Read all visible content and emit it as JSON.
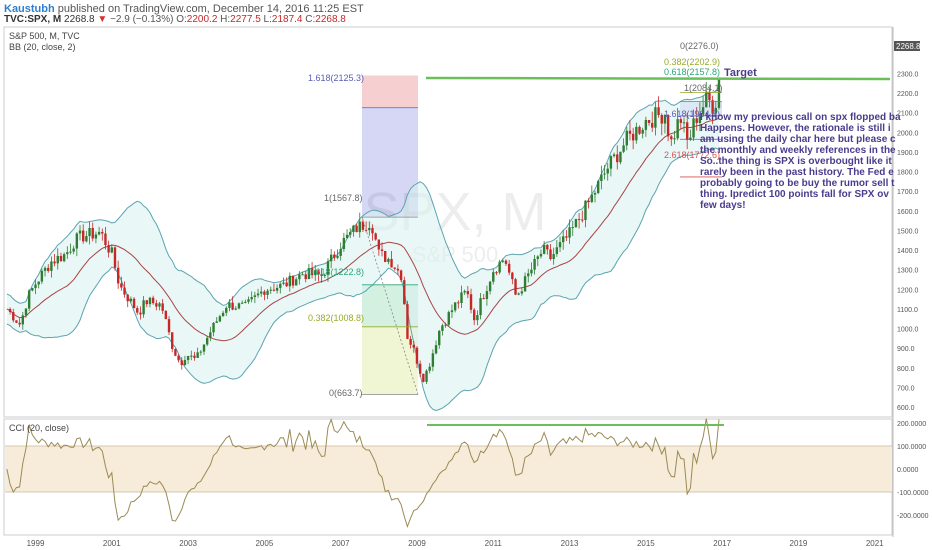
{
  "header": {
    "author": "Kaustubh",
    "published": "published on TradingView.com, December 14, 2016 11:25 EST",
    "symbol": "TVC:SPX, M",
    "last": "2268.8",
    "change_arrow": "▼",
    "change": "−2.9 (−0.13%)",
    "o_label": "O:",
    "o": "2200.2",
    "h_label": "H:",
    "h": "2277.5",
    "l_label": "L:",
    "l": "2187.4",
    "c_label": "C:",
    "c": "2268.8"
  },
  "main": {
    "legend1": "S&P 500, M, TVC",
    "legend2": "BB (20, close, 2)",
    "watermark_big": "SPX, M",
    "watermark_small": "S&P 500",
    "price_tag": "2268.8",
    "target_label": "Target",
    "fib_labels": [
      {
        "text": "1.618(2125.3)",
        "color": "#5c5cb8"
      },
      {
        "text": "1(1567.8)",
        "color": "#666666"
      },
      {
        "text": "0.618(1222.8)",
        "color": "#2aa876"
      },
      {
        "text": "0.382(1008.8)",
        "color": "#9aa92a"
      },
      {
        "text": "0(663.7)",
        "color": "#666666"
      },
      {
        "text": "0(2276.0)",
        "color": "#666666"
      },
      {
        "text": "0.382(2202.9)",
        "color": "#9aa92a"
      },
      {
        "text": "0.618(2157.8)",
        "color": "#2aa876"
      },
      {
        "text": "1(2084.1)",
        "color": "#666666"
      },
      {
        "text": "1.618(1964.8)",
        "color": "#5c5cb8"
      },
      {
        "text": "2.618(1772.6)",
        "color": "#d9534f"
      }
    ],
    "note_lines": [
      "I know my previous call on spx flopped ba",
      "Happens. However, the rationale is still i",
      "am using the daily char here but please c",
      "the monthly and weekly references in the",
      "So..the thing is SPX is overbought like it",
      "rarely been in the past history. The Fed e",
      "probably going to be buy the rumor sell t",
      "thing. Ipredict 100 points fall for SPX ov",
      "few days!"
    ]
  },
  "cci": {
    "legend": "CCI (20, close)",
    "ticks": [
      "200.0000",
      "100.0000",
      "0.0000",
      "-100.0000",
      "-200.0000"
    ]
  },
  "time_axis": [
    "1999",
    "2001",
    "2003",
    "2005",
    "2007",
    "2009",
    "2011",
    "2013",
    "2015",
    "2017",
    "2019",
    "2021"
  ],
  "colors": {
    "up": "#2e7d32",
    "down": "#c62828",
    "band": "#5ba4b0",
    "basis": "#a94444",
    "target": "#6bbf59",
    "cci": "#9b8a55"
  },
  "chart_data": [
    {
      "type": "candlestick",
      "title": "S&P 500, M, TVC",
      "xlabel": "",
      "ylabel": "",
      "x_range": [
        1998.2,
        2021.4
      ],
      "ylim": [
        570,
        2350
      ],
      "yticks": [
        600,
        700,
        800,
        900,
        1000,
        1100,
        1200,
        1300,
        1400,
        1500,
        1600,
        1700,
        1800,
        1900,
        2000,
        2100,
        2200,
        2300
      ],
      "last_price": 2268.8,
      "close_anchors": [
        [
          1998.25,
          1100
        ],
        [
          1998.6,
          1020
        ],
        [
          1998.8,
          1160
        ],
        [
          1999.0,
          1230
        ],
        [
          1999.4,
          1340
        ],
        [
          1999.8,
          1380
        ],
        [
          2000.0,
          1440
        ],
        [
          2000.2,
          1470
        ],
        [
          2000.7,
          1490
        ],
        [
          2001.0,
          1380
        ],
        [
          2001.2,
          1220
        ],
        [
          2001.7,
          1080
        ],
        [
          2001.9,
          1140
        ],
        [
          2002.3,
          1120
        ],
        [
          2002.6,
          900
        ],
        [
          2002.8,
          820
        ],
        [
          2002.95,
          870
        ],
        [
          2003.2,
          840
        ],
        [
          2003.6,
          990
        ],
        [
          2004.0,
          1120
        ],
        [
          2004.5,
          1110
        ],
        [
          2005.0,
          1200
        ],
        [
          2005.5,
          1220
        ],
        [
          2006.0,
          1280
        ],
        [
          2006.5,
          1270
        ],
        [
          2007.0,
          1430
        ],
        [
          2007.4,
          1510
        ],
        [
          2007.8,
          1550
        ],
        [
          2008.0,
          1380
        ],
        [
          2008.3,
          1350
        ],
        [
          2008.6,
          1270
        ],
        [
          2008.75,
          960
        ],
        [
          2008.9,
          900
        ],
        [
          2009.15,
          740
        ],
        [
          2009.3,
          800
        ],
        [
          2009.6,
          1000
        ],
        [
          2010.0,
          1120
        ],
        [
          2010.3,
          1190
        ],
        [
          2010.5,
          1050
        ],
        [
          2011.0,
          1300
        ],
        [
          2011.3,
          1360
        ],
        [
          2011.6,
          1160
        ],
        [
          2012.0,
          1300
        ],
        [
          2012.3,
          1400
        ],
        [
          2012.5,
          1360
        ],
        [
          2013.0,
          1480
        ],
        [
          2013.5,
          1640
        ],
        [
          2014.0,
          1820
        ],
        [
          2014.5,
          1960
        ],
        [
          2015.0,
          2060
        ],
        [
          2015.5,
          2100
        ],
        [
          2015.65,
          1940
        ],
        [
          2015.9,
          2080
        ],
        [
          2016.1,
          1940
        ],
        [
          2016.3,
          2070
        ],
        [
          2016.6,
          2170
        ],
        [
          2016.8,
          2130
        ],
        [
          2016.95,
          2269
        ]
      ],
      "bollinger": {
        "period": 20,
        "stddev": 2
      },
      "fibonacci_left": {
        "range": [
          663.7,
          1567.8
        ],
        "levels": [
          [
            0,
            663.7
          ],
          [
            0.382,
            1008.8
          ],
          [
            0.618,
            1222.8
          ],
          [
            1,
            1567.8
          ],
          [
            1.618,
            2125.3
          ]
        ]
      },
      "fibonacci_right": {
        "levels": [
          [
            0,
            2276.0
          ],
          [
            0.382,
            2202.9
          ],
          [
            0.618,
            2157.8
          ],
          [
            1,
            2084.1
          ],
          [
            1.618,
            1964.8
          ],
          [
            2.618,
            1772.6
          ]
        ]
      },
      "target_level": 2125
    },
    {
      "type": "line",
      "title": "CCI (20, close)",
      "xlabel": "",
      "ylabel": "",
      "ylim": [
        -260,
        230
      ],
      "yticks": [
        200,
        100,
        0,
        -100,
        -200
      ],
      "overbought": 100,
      "oversold": -100,
      "series": [
        {
          "source": "derived from monthly closes",
          "period": 20
        }
      ]
    }
  ]
}
